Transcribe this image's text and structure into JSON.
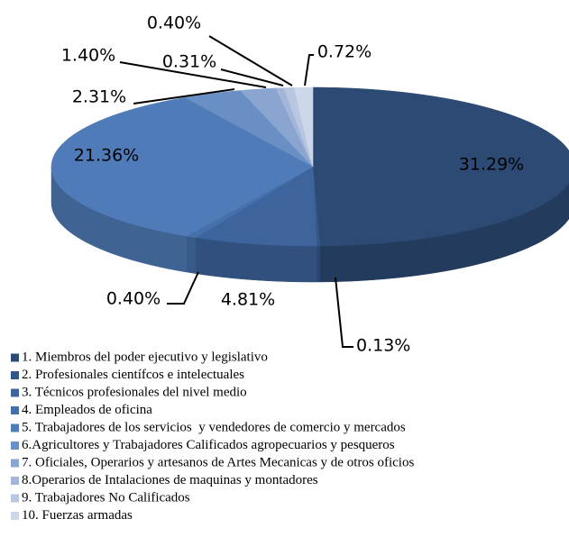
{
  "chart_data": {
    "type": "pie3d",
    "categories": [
      "1. Miembros del poder ejecutivo y legislativo",
      "2. Profesionales científcos e intelectuales",
      "3. Técnicos profesionales del nivel medio",
      "4. Empleados de oficina",
      "5. Trabajadores de los servicios  y vendedores de comercio y mercados",
      "6.Agricultores y Trabajadores Calificados agropecuarios y pesqueros",
      "7. Oficiales, Operarios y artesanos de Artes Mecanicas y de otros oficios",
      "8.Operarios de Intalaciones de maquinas y montadores",
      "9. Trabajadores No Calificados",
      "10. Fuerzas armadas"
    ],
    "values": [
      31.29,
      0.13,
      4.81,
      0.4,
      21.36,
      2.31,
      1.4,
      0.31,
      0.4,
      0.72
    ],
    "value_labels": [
      "31.29%",
      "0.13%",
      "4.81%",
      "0.40%",
      "21.36%",
      "2.31%",
      "1.40%",
      "0.31%",
      "0.40%",
      "0.72%"
    ],
    "colors": [
      "#2c4a73",
      "#34578a",
      "#3d649c",
      "#4570aa",
      "#4f7cb8",
      "#6a8fc4",
      "#8aa5cf",
      "#a3b6d9",
      "#b8c6e0",
      "#cdd7ea"
    ],
    "legend": "bottom-left"
  }
}
